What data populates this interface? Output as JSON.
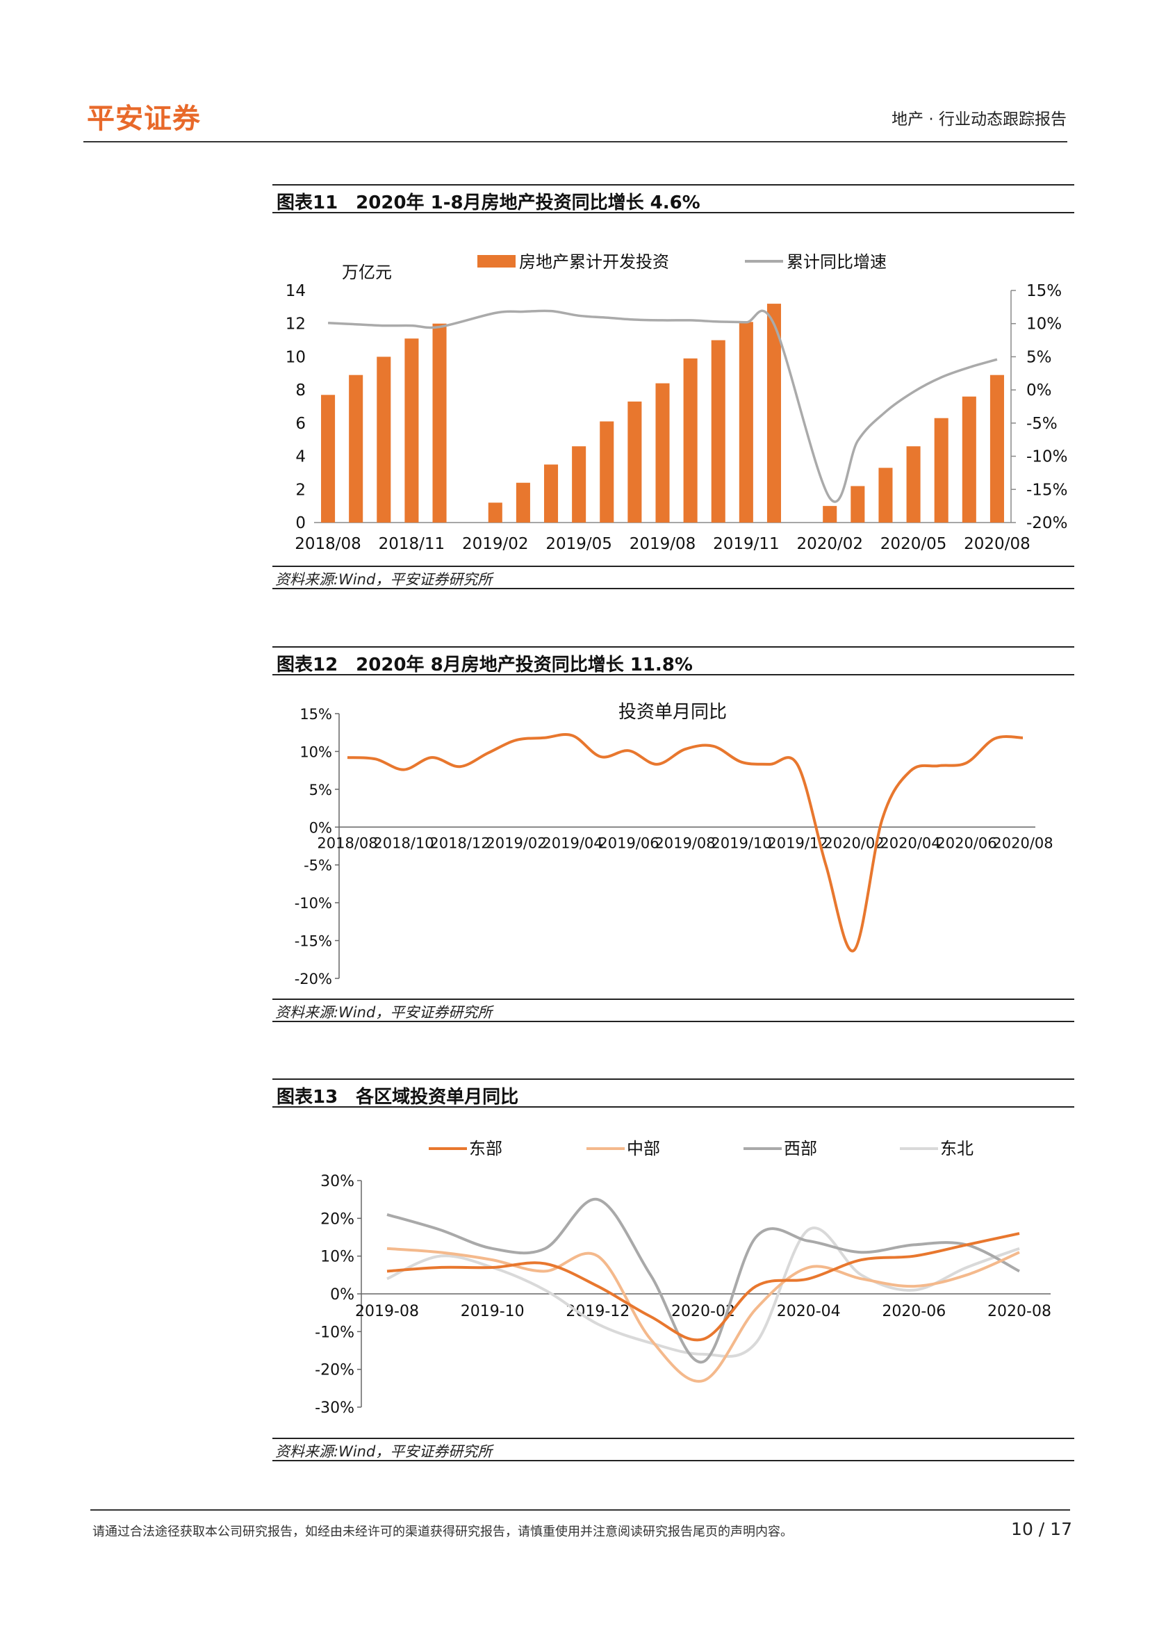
{
  "header": {
    "logo": "平安证券",
    "right": "地产 · 行业动态跟踪报告"
  },
  "fig11": {
    "title": "图表11　2020年 1-8月房地产投资同比增长 4.6%",
    "source": "资料来源:Wind，平安证券研究所",
    "chart_data": {
      "type": "bar",
      "ylabel": "万亿元",
      "ylim": [
        0,
        14
      ],
      "y2lim": [
        -20,
        15
      ],
      "yticks": [
        "0",
        "2",
        "4",
        "6",
        "8",
        "10",
        "12",
        "14"
      ],
      "y2ticks": [
        "-20%",
        "-15%",
        "-10%",
        "-5%",
        "0%",
        "5%",
        "10%",
        "15%"
      ],
      "xtick_labels": [
        "2018/08",
        "2018/11",
        "2019/02",
        "2019/05",
        "2019/08",
        "2019/11",
        "2020/02",
        "2020/05",
        "2020/08"
      ],
      "categories": [
        "2018/08",
        "2018/09",
        "2018/10",
        "2018/11",
        "2018/12",
        "2019/01",
        "2019/02",
        "2019/03",
        "2019/04",
        "2019/05",
        "2019/06",
        "2019/07",
        "2019/08",
        "2019/09",
        "2019/10",
        "2019/11",
        "2019/12",
        "2020/01",
        "2020/02",
        "2020/03",
        "2020/04",
        "2020/05",
        "2020/06",
        "2020/07",
        "2020/08"
      ],
      "series": [
        {
          "name": "房地产累计开发投资",
          "type": "bar",
          "color": "#E8772E",
          "values": [
            7.7,
            8.9,
            10.0,
            11.1,
            12.0,
            null,
            1.2,
            2.4,
            3.5,
            4.6,
            6.1,
            7.3,
            8.4,
            9.9,
            11.0,
            12.1,
            13.2,
            null,
            1.0,
            2.2,
            3.3,
            4.6,
            6.3,
            7.6,
            8.9
          ]
        },
        {
          "name": "累计同比增速",
          "type": "line",
          "color": "#AAAAAA",
          "values": [
            10.1,
            9.9,
            9.7,
            9.7,
            9.5,
            null,
            11.6,
            11.8,
            11.9,
            11.2,
            10.9,
            10.6,
            10.5,
            10.5,
            10.3,
            10.2,
            9.9,
            null,
            -16.3,
            -7.7,
            -3.3,
            -0.3,
            1.9,
            3.4,
            4.6
          ]
        }
      ]
    }
  },
  "fig12": {
    "title": "图表12　2020年 8月房地产投资同比增长 11.8%",
    "source": "资料来源:Wind，平安证券研究所",
    "chart_data": {
      "type": "line",
      "ylim": [
        -20,
        15
      ],
      "yticks": [
        "15%",
        "10%",
        "5%",
        "0%",
        "-5%",
        "-10%",
        "-15%",
        "-20%"
      ],
      "xtick_labels": [
        "2018/08",
        "2018/10",
        "2018/12",
        "2019/02",
        "2019/04",
        "2019/06",
        "2019/08",
        "2019/10",
        "2019/12",
        "2020/02",
        "2020/04",
        "2020/06",
        "2020/08"
      ],
      "series": [
        {
          "name": "投资单月同比",
          "color": "#E8772E",
          "values": [
            9.2,
            9.0,
            7.6,
            9.2,
            8.0,
            9.8,
            11.5,
            11.8,
            12.1,
            9.3,
            10.1,
            8.3,
            10.3,
            10.7,
            8.6,
            8.3,
            8.2,
            -5.0,
            -16.3,
            1.0,
            7.4,
            8.1,
            8.5,
            11.7,
            11.8
          ]
        }
      ]
    }
  },
  "fig13": {
    "title": "图表13　各区域投资单月同比",
    "source": "资料来源:Wind，平安证券研究所",
    "chart_data": {
      "type": "line",
      "ylim": [
        -30,
        30
      ],
      "yticks": [
        "30%",
        "20%",
        "10%",
        "0%",
        "-10%",
        "-20%",
        "-30%"
      ],
      "xtick_labels": [
        "2019-08",
        "2019-10",
        "2019-12",
        "2020-02",
        "2020-04",
        "2020-06",
        "2020-08"
      ],
      "categories": [
        "2019-08",
        "2019-09",
        "2019-10",
        "2019-11",
        "2019-12",
        "2020-01",
        "2020-02",
        "2020-03",
        "2020-04",
        "2020-05",
        "2020-06",
        "2020-07",
        "2020-08"
      ],
      "series": [
        {
          "name": "东部",
          "color": "#E8772E",
          "values": [
            6,
            7,
            7,
            8,
            2,
            -6,
            -12,
            2,
            4,
            9,
            10,
            13,
            16
          ]
        },
        {
          "name": "中部",
          "color": "#F4B98C",
          "values": [
            12,
            11,
            9,
            6,
            10,
            -12,
            -23,
            -4,
            7,
            4,
            2,
            5,
            11
          ]
        },
        {
          "name": "西部",
          "color": "#A9A9A9",
          "values": [
            21,
            17,
            12,
            12,
            25,
            5,
            -18,
            15,
            14,
            11,
            13,
            13,
            6
          ]
        },
        {
          "name": "东北",
          "color": "#D9D9D9",
          "values": [
            4,
            10,
            7,
            1,
            -8,
            -13,
            -16,
            -13,
            17,
            5,
            1,
            7,
            12
          ]
        }
      ]
    }
  },
  "footer": {
    "disclaimer": "请通过合法途径获取本公司研究报告，如经由未经许可的渠道获得研究报告，请慎重使用并注意阅读研究报告尾页的声明内容。",
    "page": "10 / 17"
  }
}
